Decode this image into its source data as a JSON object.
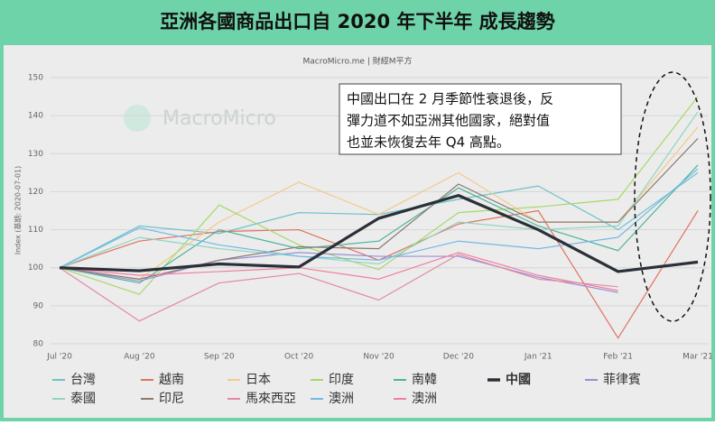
{
  "chart_data": {
    "type": "line",
    "title": "亞洲各國商品出口自 2020 年下半年 成長趨勢",
    "subtitle": "MacroMicro.me | 財經M平方",
    "watermark": "MacroMicro",
    "y_label": "Index (基期: 2020-07-01)",
    "annotation": [
      "中國出口在 2 月季節性衰退後，反",
      "彈力道不如亞洲其他國家，絕對值",
      "也並未恢復去年 Q4 高點。"
    ],
    "categories": [
      "Jul '20",
      "Aug '20",
      "Sep '20",
      "Oct '20",
      "Nov '20",
      "Dec '20",
      "Jan '21",
      "Feb '21",
      "Mar '21"
    ],
    "ylim": [
      80,
      150
    ],
    "yticks": [
      80,
      90,
      100,
      110,
      120,
      130,
      140,
      150
    ],
    "grid": true,
    "series": [
      {
        "name": "台灣",
        "color": "#6cc3c9",
        "values": [
          100,
          111,
          109,
          114.5,
          114,
          118,
          121.5,
          110,
          125
        ]
      },
      {
        "name": "越南",
        "color": "#e0735f",
        "values": [
          100,
          107,
          109.5,
          110,
          102,
          111.5,
          115,
          81.5,
          115
        ]
      },
      {
        "name": "日本",
        "color": "#f4c98a",
        "values": [
          100,
          97,
          112,
          122.5,
          114,
          125,
          112,
          112,
          137
        ]
      },
      {
        "name": "印度",
        "color": "#a6d86a",
        "values": [
          100,
          93,
          116.5,
          106,
          99.5,
          114.5,
          116,
          118,
          145
        ]
      },
      {
        "name": "南韓",
        "color": "#4fb39b",
        "values": [
          100,
          96,
          110,
          105,
          107,
          121,
          111,
          104.5,
          127
        ]
      },
      {
        "name": "中國",
        "color": "#2b2f38",
        "values": [
          100,
          99.2,
          101,
          100.2,
          113,
          119,
          110,
          99,
          101.5
        ]
      },
      {
        "name": "菲律賓",
        "color": "#9a8fd8",
        "values": [
          100,
          96.5,
          102,
          104,
          103,
          103,
          97.5,
          93.5,
          null
        ]
      },
      {
        "name": "泰國",
        "color": "#8fd6c0",
        "values": [
          100,
          108,
          105,
          103,
          101,
          112,
          110,
          111,
          141
        ]
      },
      {
        "name": "印尼",
        "color": "#8c7a6e",
        "values": [
          100,
          97,
          102,
          105.5,
          105,
          122,
          112,
          112,
          134
        ]
      },
      {
        "name": "馬來西亞",
        "color": "#e38aa0",
        "values": [
          100,
          86,
          96,
          98.5,
          91.5,
          103.5,
          97,
          95,
          null
        ]
      },
      {
        "name": "澳洲",
        "color": "#74b8e6",
        "values": [
          100,
          110.5,
          106,
          103,
          102,
          107,
          105,
          108,
          126
        ]
      },
      {
        "name": "澳洲",
        "color": "#f07fa0",
        "values": [
          100,
          98,
          99,
          100,
          97,
          104,
          98,
          94,
          null
        ]
      }
    ]
  }
}
